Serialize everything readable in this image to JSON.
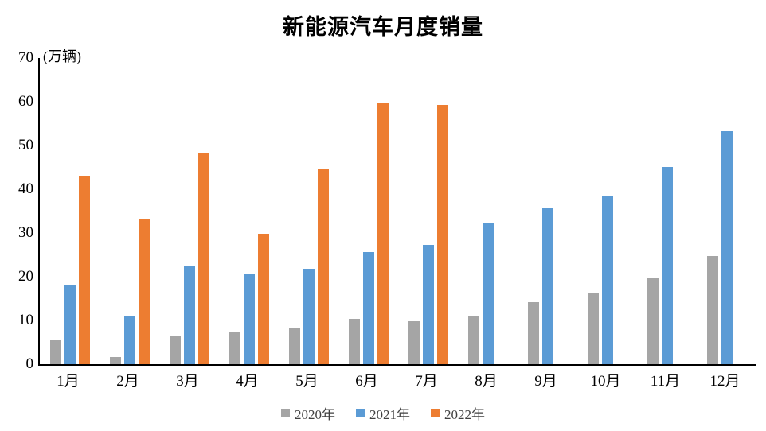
{
  "title": "新能源汽车月度销量",
  "y_axis_unit": "(万辆)",
  "chart_data": {
    "type": "bar",
    "title": "新能源汽车月度销量",
    "unit_label": "(万辆)",
    "categories": [
      "1月",
      "2月",
      "3月",
      "4月",
      "5月",
      "6月",
      "7月",
      "8月",
      "9月",
      "10月",
      "11月",
      "12月"
    ],
    "series": [
      {
        "name": "2020年",
        "color": "#A5A5A5",
        "values": [
          5.4,
          1.6,
          6.6,
          7.2,
          8.2,
          10.4,
          9.9,
          10.9,
          14.1,
          16.1,
          19.9,
          24.8
        ]
      },
      {
        "name": "2021年",
        "color": "#5B9BD5",
        "values": [
          18.0,
          11.1,
          22.6,
          20.7,
          21.8,
          25.6,
          27.2,
          32.2,
          35.6,
          38.4,
          45.1,
          53.2
        ]
      },
      {
        "name": "2022年",
        "color": "#ED7D31",
        "values": [
          43.1,
          33.3,
          48.4,
          29.9,
          44.8,
          59.7,
          59.3,
          null,
          null,
          null,
          null,
          null
        ]
      }
    ],
    "xlabel": "",
    "ylabel": "(万辆)",
    "ylim": [
      0,
      70
    ],
    "ytick_step": 10,
    "grid": false,
    "legend_position": "bottom"
  }
}
